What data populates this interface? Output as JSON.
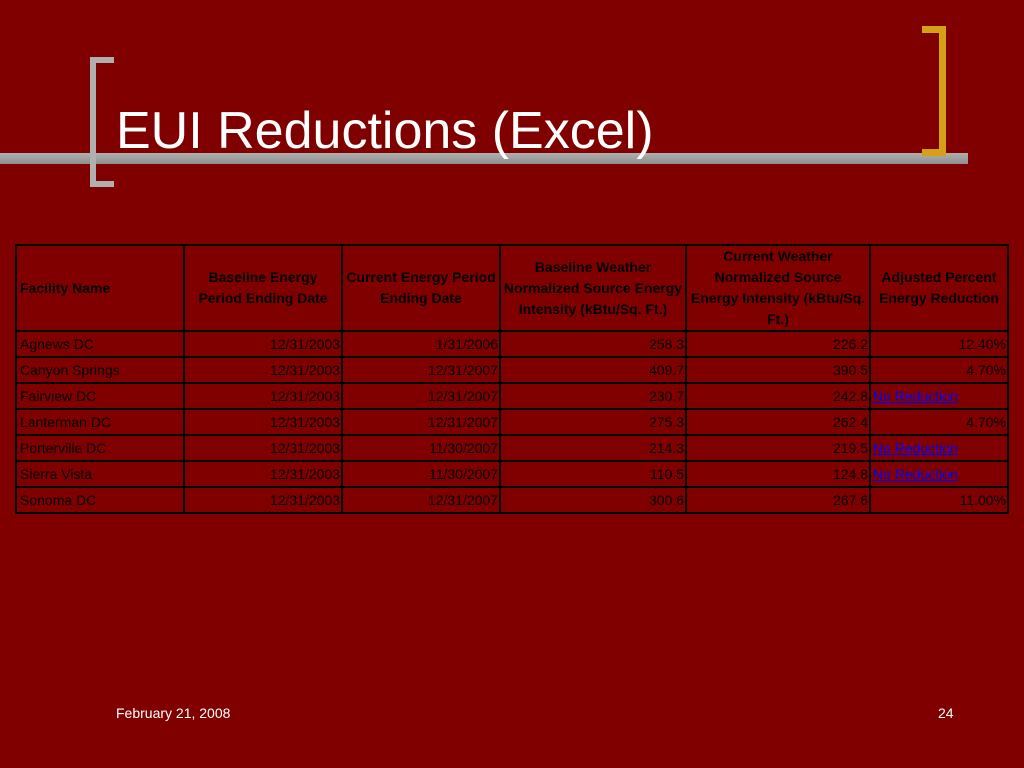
{
  "slide": {
    "title": "EUI Reductions (Excel)",
    "footer_date": "February 21, 2008",
    "slide_number": "24"
  },
  "colors": {
    "background": "#800000",
    "bracket_left": "#b0b0b0",
    "bracket_right": "#d4a017",
    "link": "#0000ff"
  },
  "table": {
    "headers": [
      "Facility Name",
      "Baseline Energy Period Ending Date",
      "Current Energy Period Ending Date",
      "Baseline Weather Normalized Source Energy Intensity (kBtu/Sq. Ft.)",
      "Current Weather Normalized Source Energy Intensity (kBtu/Sq. Ft.)",
      "Adjusted Percent Energy Reduction"
    ],
    "rows": [
      [
        "Agnews DC",
        "12/31/2003",
        "1/31/2006",
        "258.3",
        "226.2",
        "12.40%"
      ],
      [
        "Canyon Springs",
        "12/31/2003",
        "12/31/2007",
        "409.7",
        "390.5",
        "4.70%"
      ],
      [
        "Fairview DC",
        "12/31/2003",
        "12/31/2007",
        "230.7",
        "242.8",
        "No Reduction"
      ],
      [
        "Lanterman DC",
        "12/31/2003",
        "12/31/2007",
        "275.3",
        "262.4",
        "4.70%"
      ],
      [
        "Porterville DC",
        "12/31/2003",
        "11/30/2007",
        "214.3",
        "219.5",
        "No Reduction"
      ],
      [
        "Sierra Vista",
        "12/31/2003",
        "11/30/2007",
        "110.5",
        "124.8",
        "No Reduction"
      ],
      [
        "Sonoma DC",
        "12/31/2003",
        "12/31/2007",
        "300.6",
        "267.6",
        "11.00%"
      ]
    ]
  }
}
